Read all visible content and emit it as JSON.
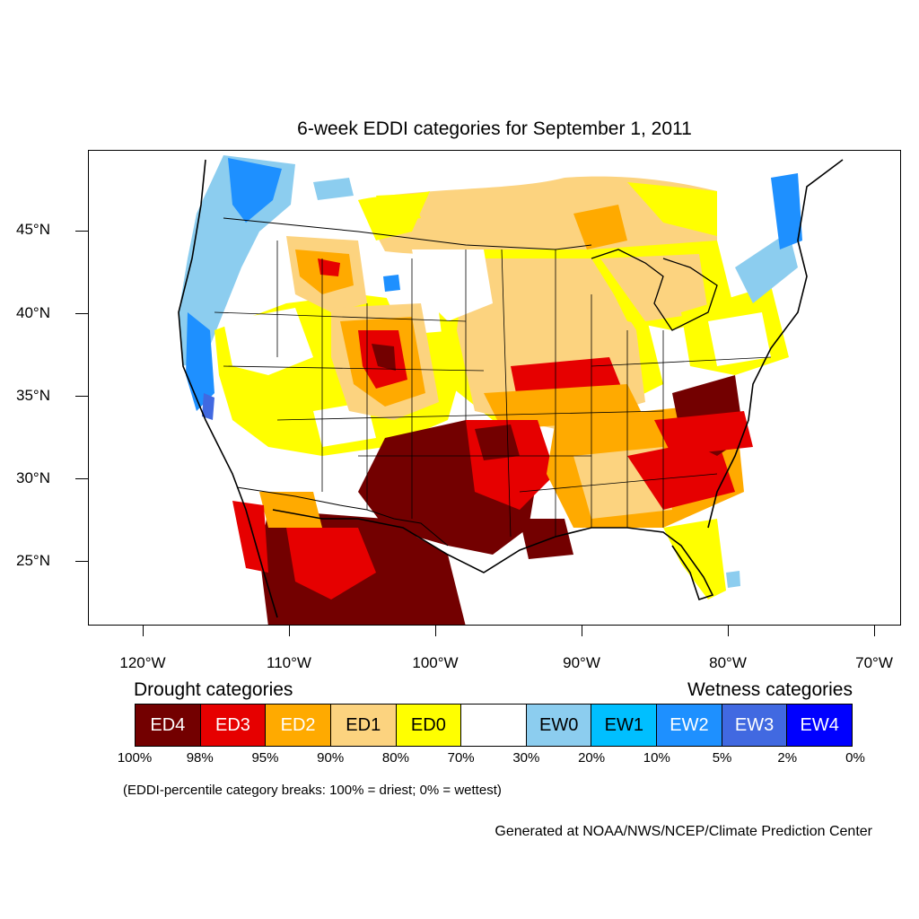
{
  "title": "6-week EDDI categories for September 1, 2011",
  "lat_labels": [
    "45°N",
    "40°N",
    "35°N",
    "30°N",
    "25°N"
  ],
  "lon_labels": [
    "120°W",
    "110°W",
    "100°W",
    "90°W",
    "80°W",
    "70°W"
  ],
  "drought_heading": "Drought categories",
  "wetness_heading": "Wetness categories",
  "legend": [
    {
      "label": "ED4",
      "color": "#730000",
      "text_color": "#ffffff"
    },
    {
      "label": "ED3",
      "color": "#e60000",
      "text_color": "#ffffff"
    },
    {
      "label": "ED2",
      "color": "#ffaa00",
      "text_color": "#ffffff"
    },
    {
      "label": "ED1",
      "color": "#fcd37f",
      "text_color": "#000000"
    },
    {
      "label": "ED0",
      "color": "#ffff00",
      "text_color": "#000000"
    },
    {
      "label": "",
      "color": "#ffffff",
      "text_color": "#000000"
    },
    {
      "label": "EW0",
      "color": "#8ccdef",
      "text_color": "#000000"
    },
    {
      "label": "EW1",
      "color": "#00bfff",
      "text_color": "#000000"
    },
    {
      "label": "EW2",
      "color": "#1e90ff",
      "text_color": "#ffffff"
    },
    {
      "label": "EW3",
      "color": "#4169e1",
      "text_color": "#ffffff"
    },
    {
      "label": "EW4",
      "color": "#0000ff",
      "text_color": "#ffffff"
    }
  ],
  "percentiles": [
    "100%",
    "98%",
    "95%",
    "90%",
    "80%",
    "70%",
    "30%",
    "20%",
    "10%",
    "5%",
    "2%",
    "0%"
  ],
  "note": "(EDDI-percentile category breaks: 100% = driest; 0% = wettest)",
  "credit": "Generated at NOAA/NWS/NCEP/Climate Prediction Center"
}
